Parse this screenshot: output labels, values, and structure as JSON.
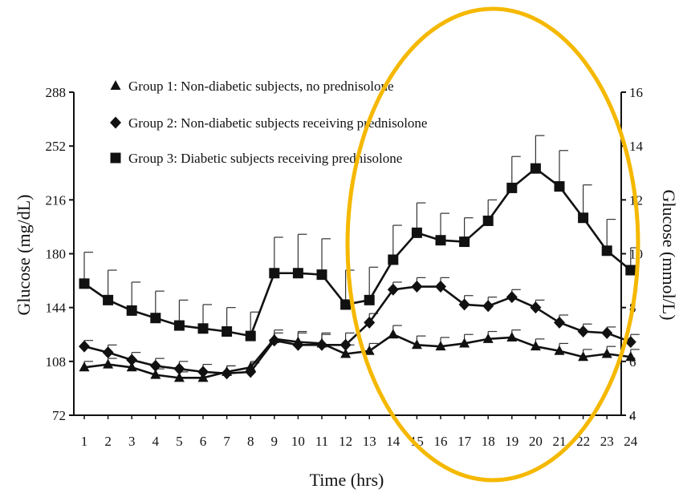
{
  "chart_data": {
    "type": "line",
    "title": "",
    "xlabel": "Time (hrs)",
    "ylabel": "Glucose (mg/dL)",
    "y2label": "Glucose (mmol/L)",
    "x": [
      "1",
      "2",
      "3",
      "4",
      "5",
      "6",
      "7",
      "8",
      "9",
      "10",
      "11",
      "12",
      "13",
      "14",
      "15",
      "16",
      "17",
      "18",
      "19",
      "20",
      "21",
      "22",
      "23",
      "24"
    ],
    "ylim": [
      72,
      288
    ],
    "yticks": [
      "72",
      "108",
      "144",
      "180",
      "216",
      "252",
      "288"
    ],
    "y2lim": [
      4,
      16
    ],
    "y2ticks": [
      "4",
      "6",
      "8",
      "10",
      "12",
      "14",
      "16"
    ],
    "grid": false,
    "legend_position": "top-left",
    "series": [
      {
        "name": "Group 1: Non-diabetic subjects, no prednisolone",
        "marker": "triangle",
        "values": [
          104,
          106,
          104,
          99,
          97,
          97,
          101,
          104,
          123,
          121,
          120,
          113,
          115,
          126,
          119,
          118,
          120,
          123,
          124,
          118,
          115,
          111,
          113,
          111
        ],
        "errors": [
          4,
          4,
          4,
          4,
          4,
          4,
          4,
          4,
          6,
          6,
          6,
          6,
          5,
          6,
          6,
          6,
          6,
          5,
          5,
          5,
          5,
          5,
          5,
          5
        ]
      },
      {
        "name": "Group 2: Non-diabetic subjects receiving prednisolone",
        "marker": "diamond",
        "values": [
          118,
          114,
          109,
          105,
          103,
          101,
          100,
          101,
          122,
          119,
          119,
          119,
          134,
          156,
          158,
          158,
          146,
          145,
          151,
          144,
          134,
          128,
          127,
          121
        ],
        "errors": [
          4,
          5,
          5,
          5,
          5,
          5,
          5,
          6,
          5,
          9,
          8,
          8,
          6,
          5,
          6,
          6,
          6,
          6,
          5,
          5,
          5,
          5,
          4,
          5
        ]
      },
      {
        "name": "Group 3: Diabetic subjects receiving prednisolone",
        "marker": "square",
        "values": [
          160,
          149,
          142,
          137,
          132,
          130,
          128,
          125,
          167,
          167,
          166,
          146,
          149,
          176,
          194,
          189,
          188,
          202,
          224,
          237,
          225,
          204,
          182,
          169
        ],
        "errors": [
          21,
          20,
          19,
          18,
          17,
          16,
          16,
          16,
          24,
          26,
          24,
          23,
          22,
          23,
          20,
          18,
          16,
          14,
          21,
          22,
          24,
          22,
          21,
          15
        ]
      }
    ],
    "highlight": {
      "shape": "ellipse",
      "color": "#f5b800",
      "range_hours": [
        13,
        24
      ]
    }
  }
}
